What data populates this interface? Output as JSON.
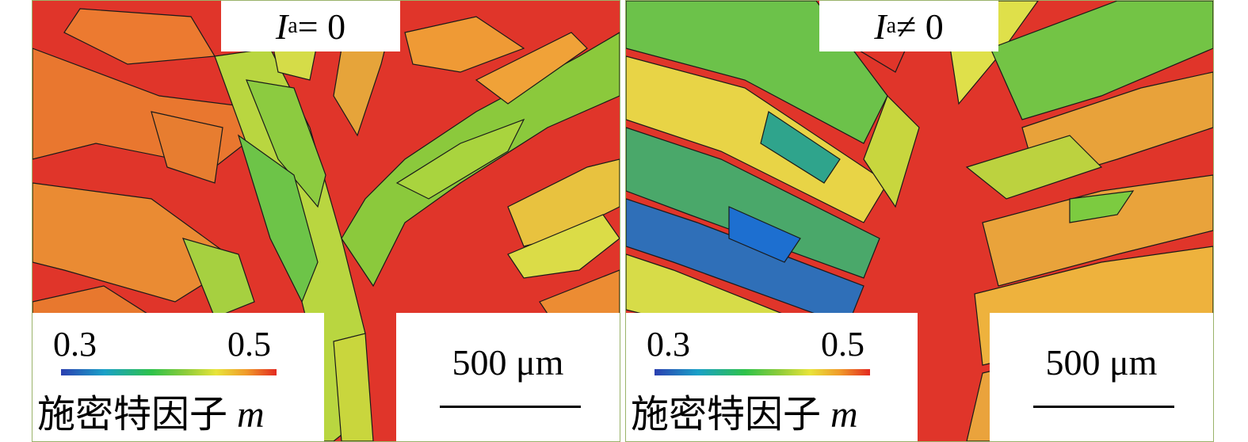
{
  "panels": [
    {
      "id": "left",
      "title_var": "I",
      "title_sub": "a",
      "title_rel": " = 0",
      "legend": {
        "min": "0.3",
        "max": "0.5",
        "caption": "施密特因子",
        "symbol": "m"
      },
      "scalebar": "500 μm"
    },
    {
      "id": "right",
      "title_var": "I",
      "title_sub": "a",
      "title_rel": " ≠ 0",
      "legend": {
        "min": "0.3",
        "max": "0.5",
        "caption": "施密特因子",
        "symbol": "m"
      },
      "scalebar": "500 μm"
    }
  ],
  "colormap": {
    "low": "#2b3fb0",
    "mid": "#2ec24a",
    "high": "#e32a20"
  }
}
